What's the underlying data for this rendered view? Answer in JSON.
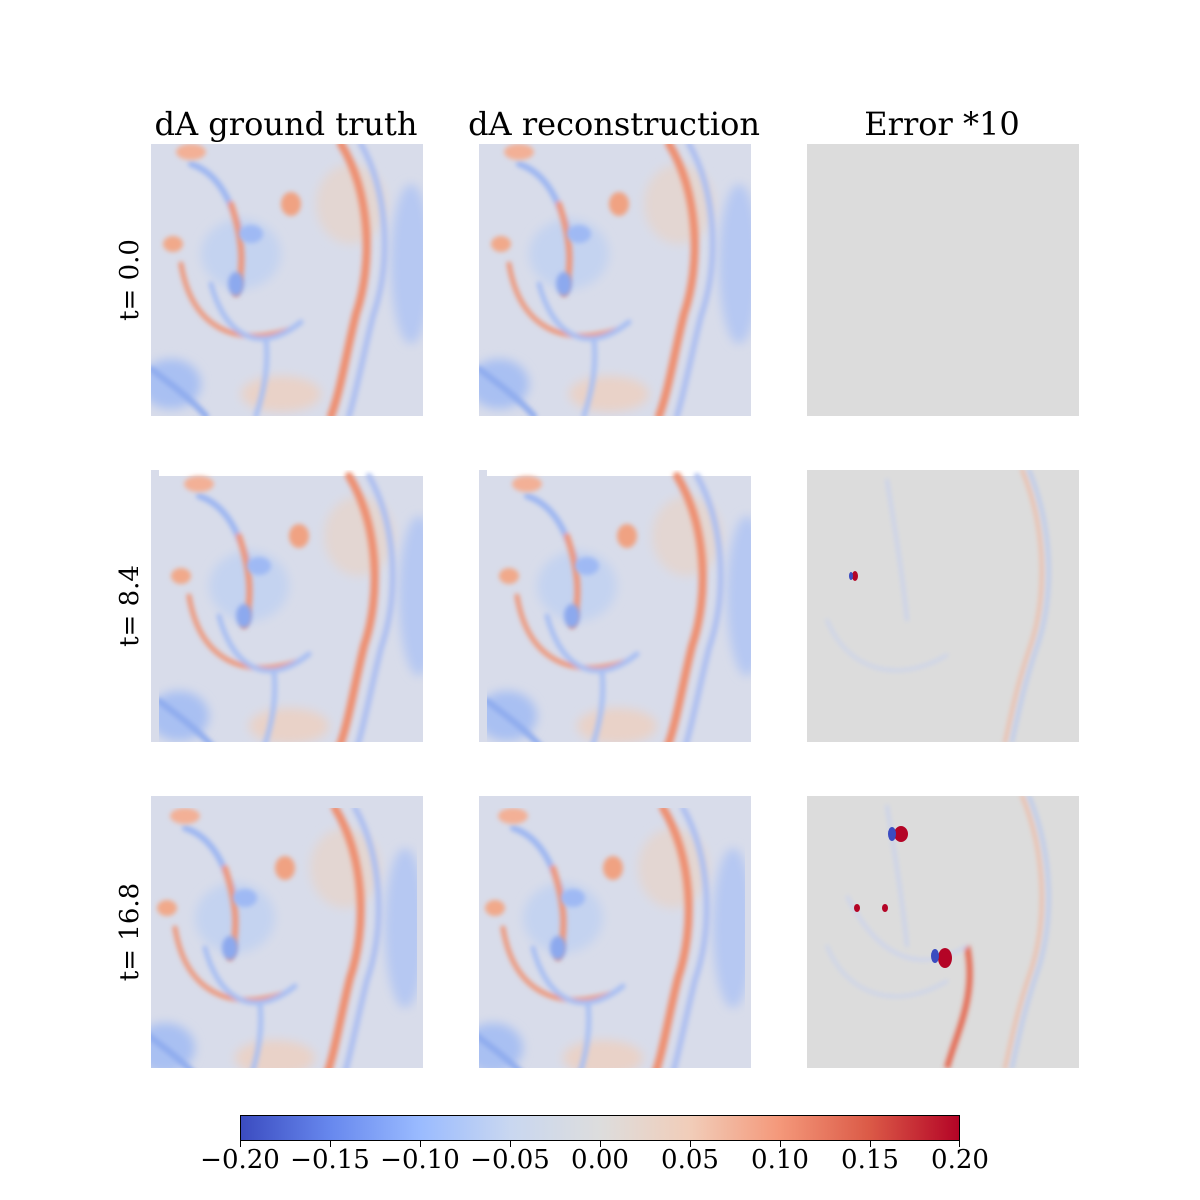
{
  "columns": [
    "dA ground truth",
    "dA reconstruction",
    "Error *10"
  ],
  "rows": [
    "t= 0.0",
    "t= 8.4",
    "t= 16.8"
  ],
  "colormap": {
    "name": "coolwarm",
    "stops": [
      "#3b4cc0",
      "#6788ee",
      "#9abbff",
      "#c9d7f0",
      "#dddddd",
      "#f1cdb9",
      "#f4987a",
      "#db5a47",
      "#b40426"
    ]
  },
  "chart_data": {
    "type": "heatmap",
    "colorbar": {
      "orientation": "horizontal",
      "range": [
        -0.2,
        0.2
      ],
      "ticks": [
        -0.2,
        -0.15,
        -0.1,
        -0.05,
        0.0,
        0.05,
        0.1,
        0.15,
        0.2
      ],
      "tick_labels": [
        "−0.20",
        "−0.15",
        "−0.10",
        "−0.05",
        "0.00",
        "0.05",
        "0.10",
        "0.15",
        "0.20"
      ]
    }
  }
}
